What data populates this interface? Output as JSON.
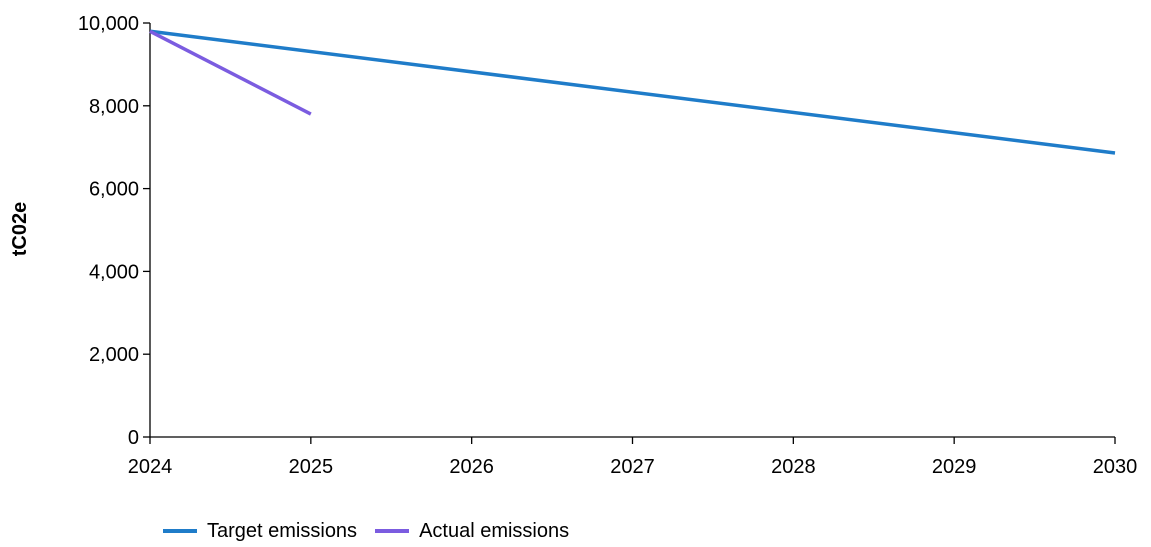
{
  "chart_data": {
    "type": "line",
    "title": "",
    "xlabel": "",
    "ylabel": "tC02e",
    "x": [
      2024,
      2025,
      2026,
      2027,
      2028,
      2029,
      2030
    ],
    "x_tick_labels": [
      "2024",
      "2025",
      "2026",
      "2027",
      "2028",
      "2029",
      "2030"
    ],
    "xlim": [
      2024,
      2030
    ],
    "ylim": [
      0,
      10000
    ],
    "y_ticks": [
      0,
      2000,
      4000,
      6000,
      8000,
      10000
    ],
    "y_tick_labels": [
      "0",
      "2,000",
      "4,000",
      "6,000",
      "8,000",
      "10,000"
    ],
    "grid": false,
    "legend_position": "bottom-left",
    "series": [
      {
        "name": "Target emissions",
        "color": "#1F7CC9",
        "points": [
          [
            2024,
            9800
          ],
          [
            2030,
            6860
          ]
        ]
      },
      {
        "name": "Actual emissions",
        "color": "#7B5CE0",
        "points": [
          [
            2024,
            9800
          ],
          [
            2025,
            7800
          ]
        ]
      }
    ]
  }
}
